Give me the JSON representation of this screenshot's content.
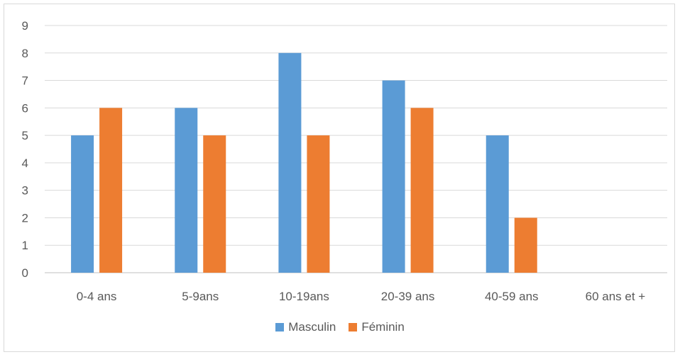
{
  "chart_data": {
    "type": "bar",
    "title": "",
    "xlabel": "",
    "ylabel": "",
    "categories": [
      "0-4 ans",
      "5-9ans",
      "10-19ans",
      "20-39 ans",
      "40-59 ans",
      "60 ans et +"
    ],
    "series": [
      {
        "name": "Masculin",
        "color": "#5b9bd5",
        "values": [
          5,
          6,
          8,
          7,
          5,
          0
        ]
      },
      {
        "name": "Féminin",
        "color": "#ed7d31",
        "values": [
          6,
          5,
          5,
          6,
          2,
          0
        ]
      }
    ],
    "ylim": [
      0,
      9
    ],
    "yticks": [
      0,
      1,
      2,
      3,
      4,
      5,
      6,
      7,
      8,
      9
    ],
    "grid": true,
    "legend_position": "bottom"
  }
}
